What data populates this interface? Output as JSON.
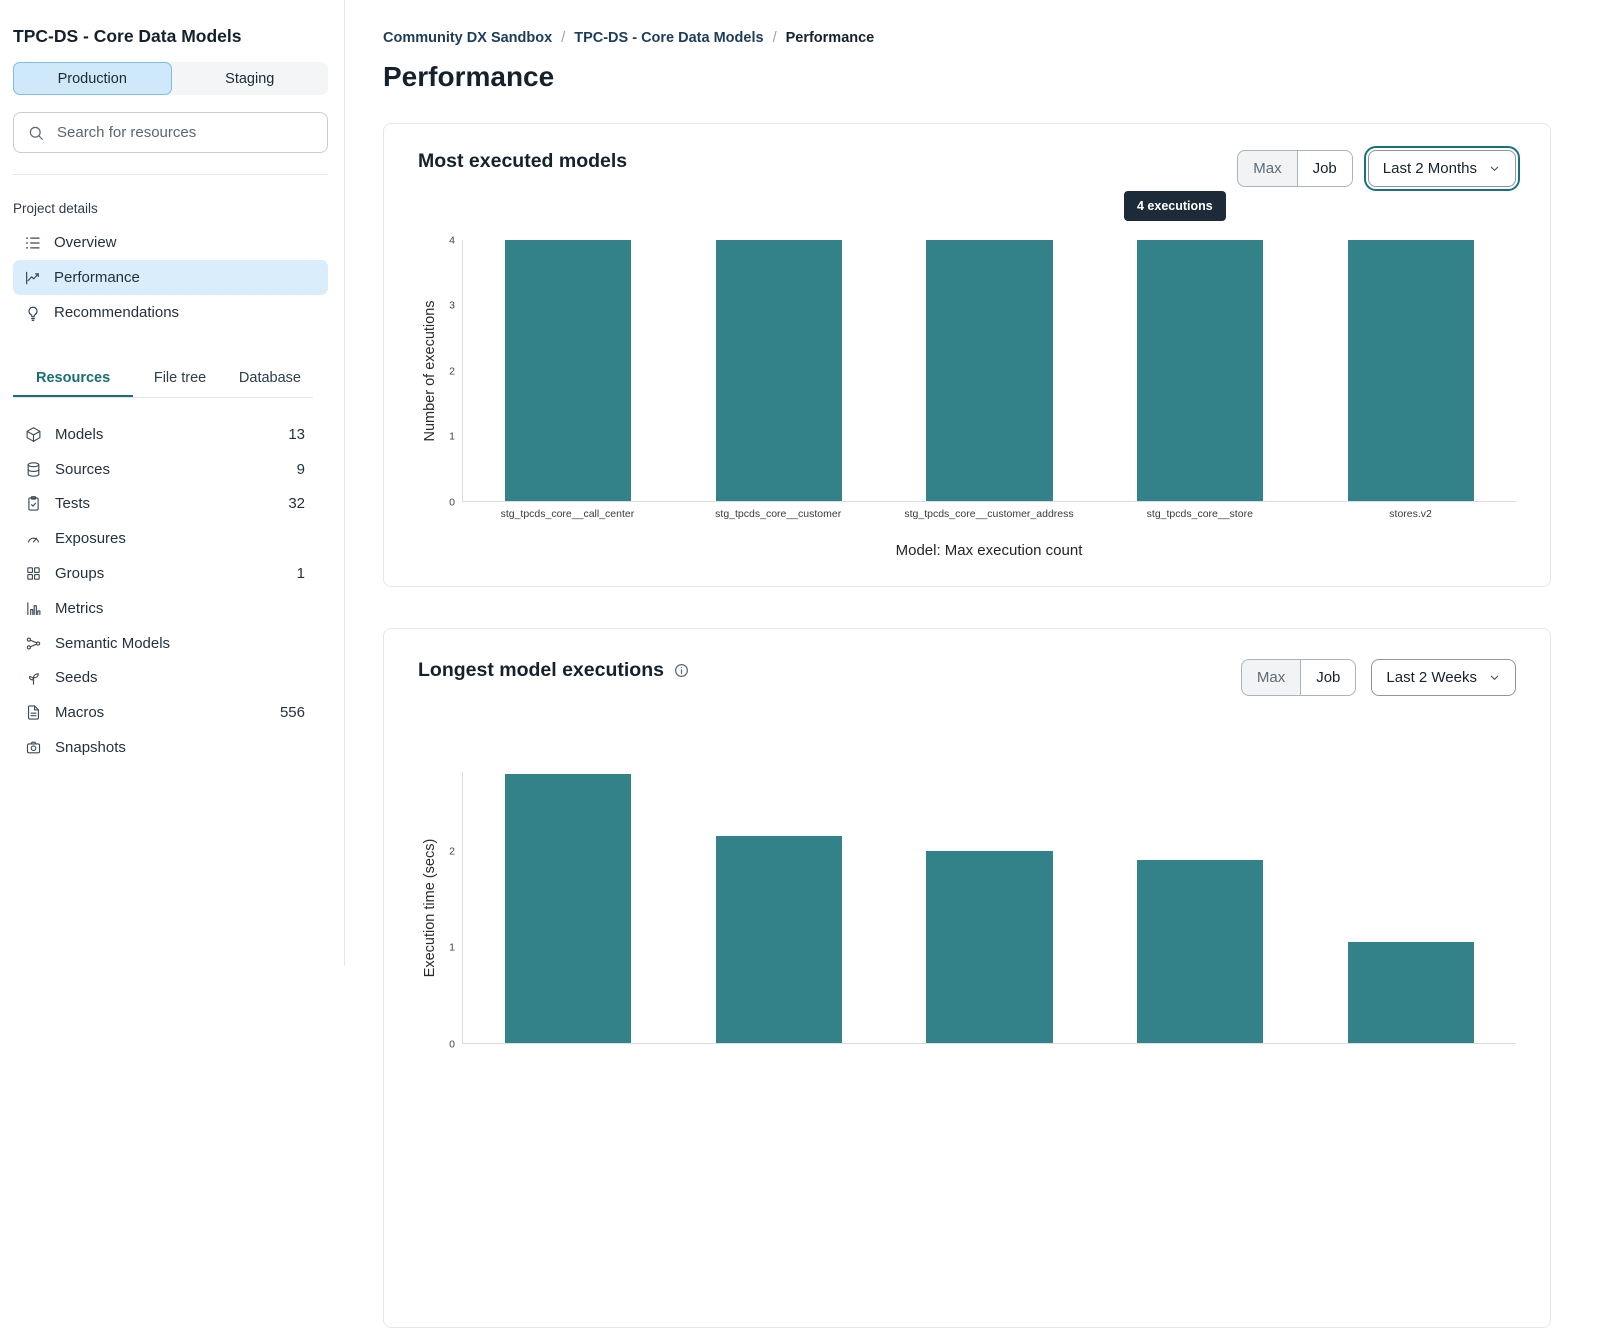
{
  "sidebar": {
    "title": "TPC-DS - Core Data Models",
    "env_tabs": {
      "production": "Production",
      "staging": "Staging",
      "active": "Production"
    },
    "search": {
      "placeholder": "Search for resources"
    },
    "project_details_label": "Project details",
    "nav": [
      {
        "label": "Overview"
      },
      {
        "label": "Performance"
      },
      {
        "label": "Recommendations"
      }
    ],
    "resource_tabs": [
      {
        "label": "Resources"
      },
      {
        "label": "File tree"
      },
      {
        "label": "Database"
      }
    ],
    "active_resource_tab": "Resources",
    "resources": [
      {
        "label": "Models",
        "count": "13"
      },
      {
        "label": "Sources",
        "count": "9"
      },
      {
        "label": "Tests",
        "count": "32"
      },
      {
        "label": "Exposures",
        "count": ""
      },
      {
        "label": "Groups",
        "count": "1"
      },
      {
        "label": "Metrics",
        "count": ""
      },
      {
        "label": "Semantic Models",
        "count": ""
      },
      {
        "label": "Seeds",
        "count": ""
      },
      {
        "label": "Macros",
        "count": "556"
      },
      {
        "label": "Snapshots",
        "count": ""
      }
    ]
  },
  "breadcrumb": {
    "links": [
      "Community DX Sandbox",
      "TPC-DS - Core Data Models"
    ],
    "separator": "/",
    "current": "Performance"
  },
  "page_title": "Performance",
  "card1": {
    "title": "Most executed models",
    "toggle": {
      "max": "Max",
      "job": "Job",
      "selected": "Max"
    },
    "dropdown": "Last 2 Months",
    "tooltip": "4 executions"
  },
  "card2": {
    "title": "Longest model executions",
    "toggle": {
      "max": "Max",
      "job": "Job",
      "selected": "Max"
    },
    "dropdown": "Last 2 Weeks"
  },
  "colors": {
    "bar_teal": "#338289",
    "active_nav_blue": "#d9edfb",
    "active_tab_teal": "#196e78",
    "tooltip_bg": "#1c2b37"
  },
  "chart_data": [
    {
      "type": "bar",
      "title": "Most executed models",
      "categories": [
        "stg_tpcds_core__call_center",
        "stg_tpcds_core__customer",
        "stg_tpcds_core__customer_address",
        "stg_tpcds_core__store",
        "stores.v2"
      ],
      "values": [
        4,
        4,
        4,
        4,
        4
      ],
      "xlabel": "Model: Max execution count",
      "ylabel": "Number of executions",
      "ylim": [
        0,
        4
      ],
      "yticks": [
        0,
        1,
        2,
        3,
        4
      ],
      "grid": false,
      "legend": false,
      "annotation": {
        "text": "4 executions",
        "target_category": "stg_tpcds_core__store"
      }
    },
    {
      "type": "bar",
      "title": "Longest model executions",
      "categories": [
        "",
        "",
        "",
        "",
        ""
      ],
      "values": [
        2.8,
        2.15,
        2.0,
        1.9,
        1.05
      ],
      "xlabel": "",
      "ylabel": "Execution time (secs)",
      "ylim": [
        0,
        2.82
      ],
      "yticks": [
        0,
        1,
        2
      ],
      "grid": false,
      "legend": false
    }
  ]
}
